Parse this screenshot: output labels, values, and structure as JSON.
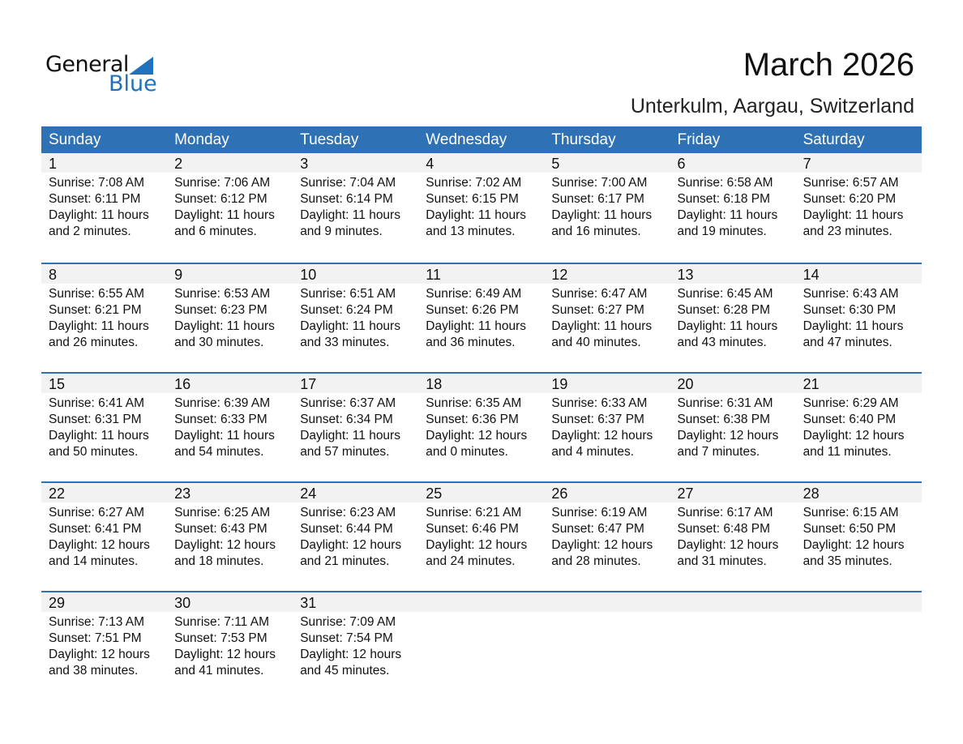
{
  "logo": {
    "word1": "General",
    "word2": "Blue",
    "brand_color": "#1f72bb"
  },
  "title": "March 2026",
  "location": "Unterkulm, Aargau, Switzerland",
  "header_color": "#2e72b5",
  "weekdays": [
    "Sunday",
    "Monday",
    "Tuesday",
    "Wednesday",
    "Thursday",
    "Friday",
    "Saturday"
  ],
  "weeks": [
    [
      {
        "date": "1",
        "sunrise": "Sunrise: 7:08 AM",
        "sunset": "Sunset: 6:11 PM",
        "daylight": "Daylight: 11 hours",
        "minutes": "and 2 minutes."
      },
      {
        "date": "2",
        "sunrise": "Sunrise: 7:06 AM",
        "sunset": "Sunset: 6:12 PM",
        "daylight": "Daylight: 11 hours",
        "minutes": "and 6 minutes."
      },
      {
        "date": "3",
        "sunrise": "Sunrise: 7:04 AM",
        "sunset": "Sunset: 6:14 PM",
        "daylight": "Daylight: 11 hours",
        "minutes": "and 9 minutes."
      },
      {
        "date": "4",
        "sunrise": "Sunrise: 7:02 AM",
        "sunset": "Sunset: 6:15 PM",
        "daylight": "Daylight: 11 hours",
        "minutes": "and 13 minutes."
      },
      {
        "date": "5",
        "sunrise": "Sunrise: 7:00 AM",
        "sunset": "Sunset: 6:17 PM",
        "daylight": "Daylight: 11 hours",
        "minutes": "and 16 minutes."
      },
      {
        "date": "6",
        "sunrise": "Sunrise: 6:58 AM",
        "sunset": "Sunset: 6:18 PM",
        "daylight": "Daylight: 11 hours",
        "minutes": "and 19 minutes."
      },
      {
        "date": "7",
        "sunrise": "Sunrise: 6:57 AM",
        "sunset": "Sunset: 6:20 PM",
        "daylight": "Daylight: 11 hours",
        "minutes": "and 23 minutes."
      }
    ],
    [
      {
        "date": "8",
        "sunrise": "Sunrise: 6:55 AM",
        "sunset": "Sunset: 6:21 PM",
        "daylight": "Daylight: 11 hours",
        "minutes": "and 26 minutes."
      },
      {
        "date": "9",
        "sunrise": "Sunrise: 6:53 AM",
        "sunset": "Sunset: 6:23 PM",
        "daylight": "Daylight: 11 hours",
        "minutes": "and 30 minutes."
      },
      {
        "date": "10",
        "sunrise": "Sunrise: 6:51 AM",
        "sunset": "Sunset: 6:24 PM",
        "daylight": "Daylight: 11 hours",
        "minutes": "and 33 minutes."
      },
      {
        "date": "11",
        "sunrise": "Sunrise: 6:49 AM",
        "sunset": "Sunset: 6:26 PM",
        "daylight": "Daylight: 11 hours",
        "minutes": "and 36 minutes."
      },
      {
        "date": "12",
        "sunrise": "Sunrise: 6:47 AM",
        "sunset": "Sunset: 6:27 PM",
        "daylight": "Daylight: 11 hours",
        "minutes": "and 40 minutes."
      },
      {
        "date": "13",
        "sunrise": "Sunrise: 6:45 AM",
        "sunset": "Sunset: 6:28 PM",
        "daylight": "Daylight: 11 hours",
        "minutes": "and 43 minutes."
      },
      {
        "date": "14",
        "sunrise": "Sunrise: 6:43 AM",
        "sunset": "Sunset: 6:30 PM",
        "daylight": "Daylight: 11 hours",
        "minutes": "and 47 minutes."
      }
    ],
    [
      {
        "date": "15",
        "sunrise": "Sunrise: 6:41 AM",
        "sunset": "Sunset: 6:31 PM",
        "daylight": "Daylight: 11 hours",
        "minutes": "and 50 minutes."
      },
      {
        "date": "16",
        "sunrise": "Sunrise: 6:39 AM",
        "sunset": "Sunset: 6:33 PM",
        "daylight": "Daylight: 11 hours",
        "minutes": "and 54 minutes."
      },
      {
        "date": "17",
        "sunrise": "Sunrise: 6:37 AM",
        "sunset": "Sunset: 6:34 PM",
        "daylight": "Daylight: 11 hours",
        "minutes": "and 57 minutes."
      },
      {
        "date": "18",
        "sunrise": "Sunrise: 6:35 AM",
        "sunset": "Sunset: 6:36 PM",
        "daylight": "Daylight: 12 hours",
        "minutes": "and 0 minutes."
      },
      {
        "date": "19",
        "sunrise": "Sunrise: 6:33 AM",
        "sunset": "Sunset: 6:37 PM",
        "daylight": "Daylight: 12 hours",
        "minutes": "and 4 minutes."
      },
      {
        "date": "20",
        "sunrise": "Sunrise: 6:31 AM",
        "sunset": "Sunset: 6:38 PM",
        "daylight": "Daylight: 12 hours",
        "minutes": "and 7 minutes."
      },
      {
        "date": "21",
        "sunrise": "Sunrise: 6:29 AM",
        "sunset": "Sunset: 6:40 PM",
        "daylight": "Daylight: 12 hours",
        "minutes": "and 11 minutes."
      }
    ],
    [
      {
        "date": "22",
        "sunrise": "Sunrise: 6:27 AM",
        "sunset": "Sunset: 6:41 PM",
        "daylight": "Daylight: 12 hours",
        "minutes": "and 14 minutes."
      },
      {
        "date": "23",
        "sunrise": "Sunrise: 6:25 AM",
        "sunset": "Sunset: 6:43 PM",
        "daylight": "Daylight: 12 hours",
        "minutes": "and 18 minutes."
      },
      {
        "date": "24",
        "sunrise": "Sunrise: 6:23 AM",
        "sunset": "Sunset: 6:44 PM",
        "daylight": "Daylight: 12 hours",
        "minutes": "and 21 minutes."
      },
      {
        "date": "25",
        "sunrise": "Sunrise: 6:21 AM",
        "sunset": "Sunset: 6:46 PM",
        "daylight": "Daylight: 12 hours",
        "minutes": "and 24 minutes."
      },
      {
        "date": "26",
        "sunrise": "Sunrise: 6:19 AM",
        "sunset": "Sunset: 6:47 PM",
        "daylight": "Daylight: 12 hours",
        "minutes": "and 28 minutes."
      },
      {
        "date": "27",
        "sunrise": "Sunrise: 6:17 AM",
        "sunset": "Sunset: 6:48 PM",
        "daylight": "Daylight: 12 hours",
        "minutes": "and 31 minutes."
      },
      {
        "date": "28",
        "sunrise": "Sunrise: 6:15 AM",
        "sunset": "Sunset: 6:50 PM",
        "daylight": "Daylight: 12 hours",
        "minutes": "and 35 minutes."
      }
    ],
    [
      {
        "date": "29",
        "sunrise": "Sunrise: 7:13 AM",
        "sunset": "Sunset: 7:51 PM",
        "daylight": "Daylight: 12 hours",
        "minutes": "and 38 minutes."
      },
      {
        "date": "30",
        "sunrise": "Sunrise: 7:11 AM",
        "sunset": "Sunset: 7:53 PM",
        "daylight": "Daylight: 12 hours",
        "minutes": "and 41 minutes."
      },
      {
        "date": "31",
        "sunrise": "Sunrise: 7:09 AM",
        "sunset": "Sunset: 7:54 PM",
        "daylight": "Daylight: 12 hours",
        "minutes": "and 45 minutes."
      },
      {},
      {},
      {},
      {}
    ]
  ]
}
